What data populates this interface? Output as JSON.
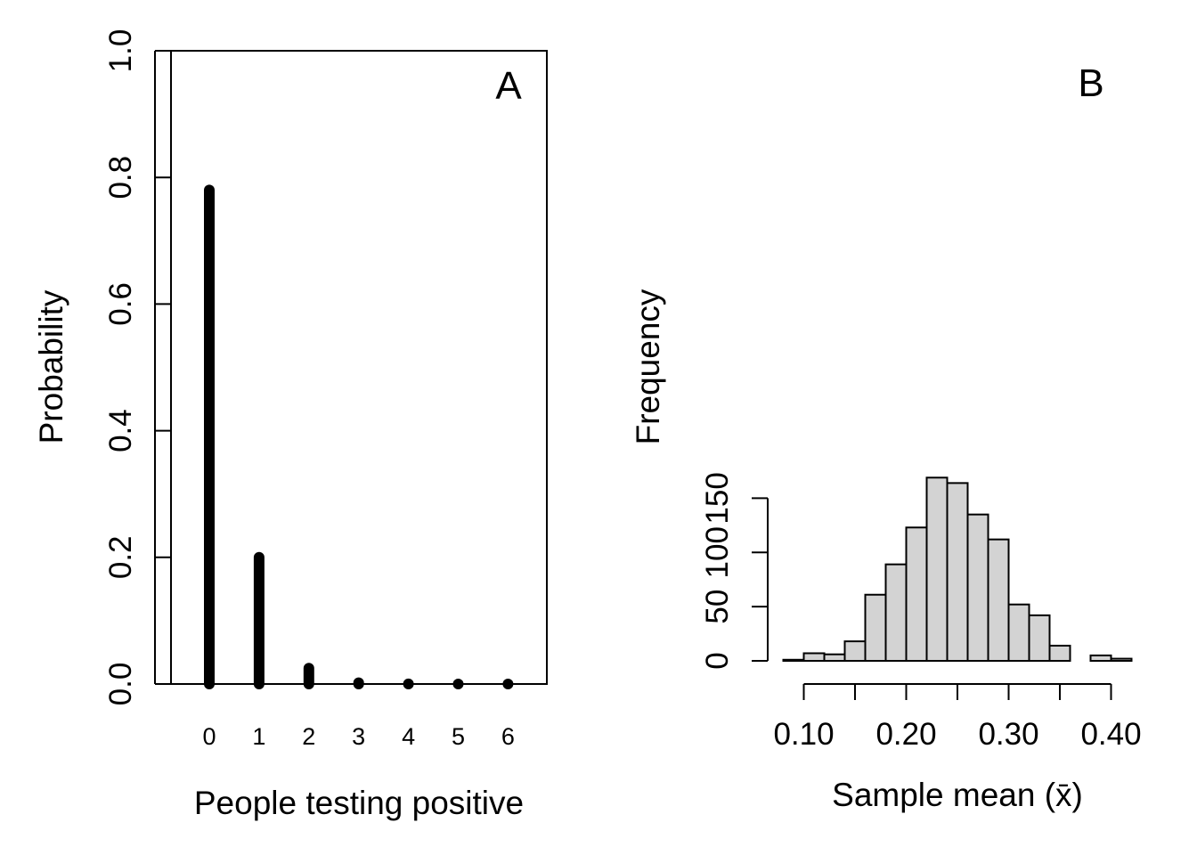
{
  "chart_data": [
    {
      "type": "bar",
      "panel_label": "A",
      "xlabel": "People testing positive",
      "ylabel": "Probability",
      "categories": [
        "0",
        "1",
        "2",
        "3",
        "4",
        "5",
        "6"
      ],
      "values": [
        0.78,
        0.2,
        0.025,
        0.002,
        0.0002,
        1e-05,
        5e-07
      ],
      "ylim": [
        0,
        1
      ],
      "yticks": [
        0,
        0.2,
        0.4,
        0.6,
        0.8,
        1.0
      ],
      "ytick_labels": [
        "0.0",
        "0.2",
        "0.4",
        "0.6",
        "0.8",
        "1.0"
      ],
      "grid": false,
      "box": true,
      "bar_color": "#000000"
    },
    {
      "type": "bar",
      "subtype": "histogram",
      "panel_label": "B",
      "xlabel": "Sample mean (x̄)",
      "ylabel": "Frequency",
      "bin_edges": [
        0.08,
        0.1,
        0.12,
        0.14,
        0.16,
        0.18,
        0.2,
        0.22,
        0.24,
        0.26,
        0.28,
        0.3,
        0.32,
        0.34,
        0.36,
        0.38,
        0.4,
        0.42
      ],
      "values": [
        1,
        7,
        6,
        18,
        61,
        89,
        123,
        169,
        164,
        135,
        112,
        52,
        42,
        14,
        0,
        5,
        2
      ],
      "xticks": [
        0.1,
        0.15,
        0.2,
        0.25,
        0.3,
        0.35,
        0.4
      ],
      "xtick_labels": [
        "0.10",
        "",
        "0.20",
        "",
        "0.30",
        "",
        "0.40"
      ],
      "yticks": [
        0,
        50,
        100,
        150
      ],
      "ytick_labels": [
        "0",
        "50",
        "100",
        "150"
      ],
      "grid": false,
      "box": false,
      "bar_fill": "#d3d3d3",
      "bar_edge": "#000000"
    }
  ]
}
